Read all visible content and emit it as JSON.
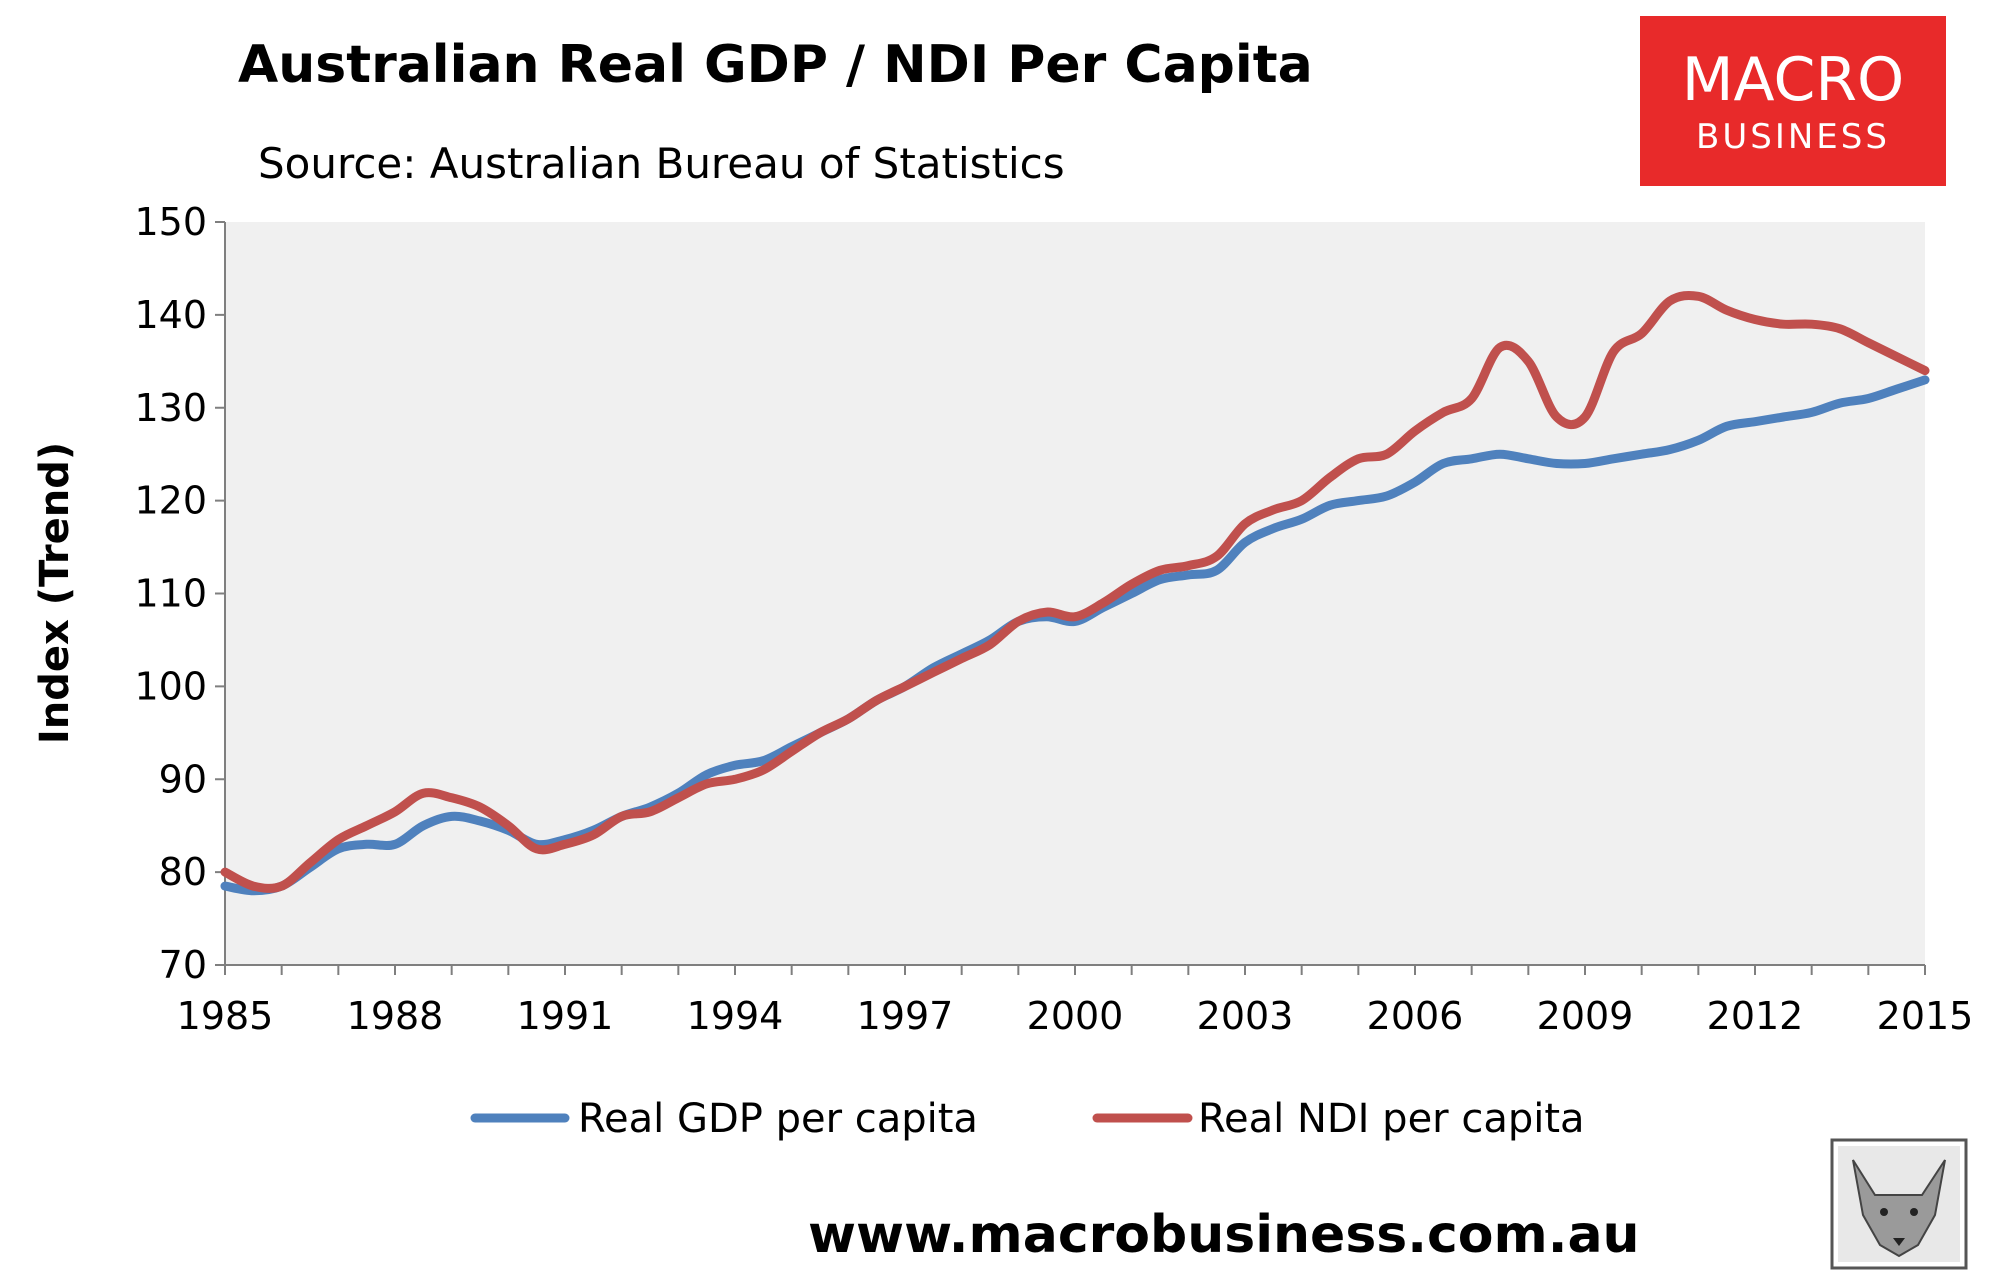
{
  "chart_data": {
    "type": "line",
    "title": "Australian Real GDP / NDI Per Capita",
    "subtitle": "Source: Australian Bureau of Statistics",
    "xlabel": "",
    "ylabel": "Index (Trend)",
    "xlim": [
      1985,
      2015
    ],
    "ylim": [
      70,
      150
    ],
    "x_ticks": [
      "1985",
      "1988",
      "1991",
      "1994",
      "1997",
      "2000",
      "2003",
      "2006",
      "2009",
      "2012",
      "2015"
    ],
    "y_ticks": [
      "70",
      "80",
      "90",
      "100",
      "110",
      "120",
      "130",
      "140",
      "150"
    ],
    "grid": false,
    "legend_position": "bottom",
    "series": [
      {
        "name": "Real GDP per capita",
        "color": "#4f81bd",
        "x": [
          1985,
          1985.5,
          1986,
          1986.5,
          1987,
          1987.5,
          1988,
          1988.5,
          1989,
          1989.5,
          1990,
          1990.5,
          1991,
          1991.5,
          1992,
          1992.5,
          1993,
          1993.5,
          1994,
          1994.5,
          1995,
          1995.5,
          1996,
          1996.5,
          1997,
          1997.5,
          1998,
          1998.5,
          1999,
          1999.5,
          2000,
          2000.5,
          2001,
          2001.5,
          2002,
          2002.5,
          2003,
          2003.5,
          2004,
          2004.5,
          2005,
          2005.5,
          2006,
          2006.5,
          2007,
          2007.5,
          2008,
          2008.5,
          2009,
          2009.5,
          2010,
          2010.5,
          2011,
          2011.5,
          2012,
          2012.5,
          2013,
          2013.5,
          2014,
          2014.5,
          2015
        ],
        "values": [
          78.5,
          78.0,
          78.5,
          80.5,
          82.5,
          83.0,
          83.0,
          85.0,
          86.0,
          85.5,
          84.5,
          83.0,
          83.5,
          84.5,
          86.0,
          87.0,
          88.5,
          90.5,
          91.5,
          92.0,
          93.5,
          95.0,
          96.5,
          98.5,
          100.0,
          102.0,
          103.5,
          105.0,
          107.0,
          107.5,
          107.0,
          108.5,
          110.0,
          111.5,
          112.0,
          112.5,
          115.5,
          117.0,
          118.0,
          119.5,
          120.0,
          120.5,
          122.0,
          124.0,
          124.5,
          125.0,
          124.5,
          124.0,
          124.0,
          124.5,
          125.0,
          125.5,
          126.5,
          128.0,
          128.5,
          129.0,
          129.5,
          130.5,
          131.0,
          132.0,
          133.0
        ]
      },
      {
        "name": "Real NDI per capita",
        "color": "#c0504d",
        "x": [
          1985,
          1985.5,
          1986,
          1986.5,
          1987,
          1987.5,
          1988,
          1988.5,
          1989,
          1989.5,
          1990,
          1990.5,
          1991,
          1991.5,
          1992,
          1992.5,
          1993,
          1993.5,
          1994,
          1994.5,
          1995,
          1995.5,
          1996,
          1996.5,
          1997,
          1997.5,
          1998,
          1998.5,
          1999,
          1999.5,
          2000,
          2000.5,
          2001,
          2001.5,
          2002,
          2002.5,
          2003,
          2003.5,
          2004,
          2004.5,
          2005,
          2005.5,
          2006,
          2006.5,
          2007,
          2007.5,
          2008,
          2008.5,
          2009,
          2009.5,
          2010,
          2010.5,
          2011,
          2011.5,
          2012,
          2012.5,
          2013,
          2013.5,
          2014,
          2014.5,
          2015
        ],
        "values": [
          80.0,
          78.5,
          78.5,
          81.0,
          83.5,
          85.0,
          86.5,
          88.5,
          88.0,
          87.0,
          85.0,
          82.5,
          83.0,
          84.0,
          86.0,
          86.5,
          88.0,
          89.5,
          90.0,
          91.0,
          93.0,
          95.0,
          96.5,
          98.5,
          100.0,
          101.5,
          103.0,
          104.5,
          107.0,
          108.0,
          107.5,
          109.0,
          111.0,
          112.5,
          113.0,
          114.0,
          117.5,
          119.0,
          120.0,
          122.5,
          124.5,
          125.0,
          127.5,
          129.5,
          131.0,
          136.5,
          135.0,
          129.0,
          129.0,
          136.0,
          138.0,
          141.5,
          142.0,
          140.5,
          139.5,
          139.0,
          139.0,
          138.5,
          137.0,
          135.5,
          134.0
        ]
      }
    ]
  },
  "logo": {
    "line1": "MACRO",
    "line2": "BUSINESS",
    "bg_color": "#e82a2a"
  },
  "website": "www.macrobusiness.com.au",
  "colors": {
    "plot_bg": "#f0f0f0"
  }
}
